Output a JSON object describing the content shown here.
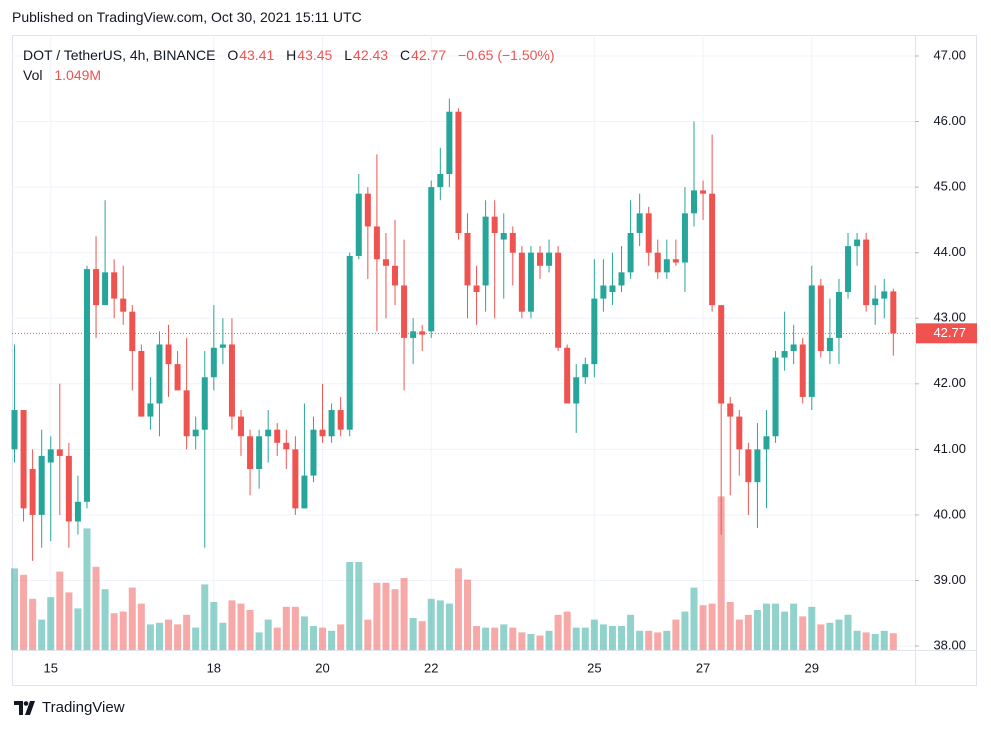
{
  "header": "Published on TradingView.com, Oct 30, 2021 15:11 UTC",
  "footer": "TradingView",
  "chart_data": {
    "type": "candlestick",
    "title": "DOT / TetherUS, 4h, BINANCE",
    "ohlc_labels": [
      "O",
      "H",
      "L",
      "C"
    ],
    "change": "−0.65 (−1.50%)",
    "volume_title": "Vol",
    "last_volume_label": "1.049M",
    "up_color": "#26a69a",
    "down_color": "#ef5350",
    "grid": true,
    "categories": [
      null,
      null,
      null,
      null,
      "15",
      null,
      null,
      null,
      null,
      null,
      null,
      null,
      null,
      null,
      null,
      null,
      null,
      null,
      null,
      null,
      null,
      null,
      "18",
      null,
      null,
      null,
      null,
      null,
      null,
      null,
      null,
      null,
      null,
      null,
      "20",
      null,
      null,
      null,
      null,
      null,
      null,
      null,
      null,
      null,
      null,
      null,
      "22",
      null,
      null,
      null,
      null,
      null,
      null,
      null,
      null,
      null,
      null,
      null,
      null,
      null,
      null,
      null,
      null,
      null,
      "25",
      null,
      null,
      null,
      null,
      null,
      null,
      null,
      null,
      null,
      null,
      null,
      "27",
      null,
      null,
      null,
      null,
      null,
      null,
      null,
      null,
      null,
      null,
      null,
      "29",
      null,
      null,
      null,
      null,
      null,
      null,
      null,
      null,
      null
    ],
    "open": [
      41.0,
      41.6,
      40.7,
      40.0,
      40.8,
      41.0,
      40.9,
      39.9,
      40.2,
      43.75,
      43.2,
      43.7,
      43.3,
      43.1,
      42.5,
      41.5,
      41.7,
      42.6,
      42.3,
      41.9,
      41.2,
      41.3,
      42.1,
      42.55,
      42.6,
      41.5,
      41.2,
      40.7,
      41.2,
      41.3,
      41.1,
      41.0,
      40.1,
      40.6,
      41.3,
      41.2,
      41.6,
      41.3,
      43.95,
      44.9,
      44.4,
      43.9,
      43.8,
      43.5,
      42.7,
      42.8,
      42.8,
      45.0,
      45.2,
      46.15,
      44.3,
      43.5,
      43.5,
      44.55,
      44.2,
      44.3,
      44.0,
      43.1,
      44.0,
      43.8,
      44.0,
      42.55,
      41.7,
      42.1,
      42.3,
      43.3,
      43.4,
      43.5,
      43.7,
      44.3,
      44.6,
      44.0,
      43.7,
      43.9,
      43.85,
      44.6,
      44.95,
      44.9,
      43.2,
      41.7,
      41.5,
      41.0,
      40.5,
      41.0,
      41.2,
      42.4,
      42.5,
      42.6,
      41.8,
      43.5,
      42.5,
      42.7,
      43.4,
      44.1,
      44.2,
      43.2,
      43.3,
      43.41
    ],
    "high": [
      42.6,
      41.6,
      41.0,
      41.3,
      41.2,
      42.0,
      41.1,
      40.6,
      43.8,
      44.25,
      44.8,
      43.9,
      43.8,
      43.2,
      42.6,
      42.1,
      42.8,
      42.9,
      42.5,
      42.7,
      41.5,
      42.5,
      43.2,
      43.0,
      43.0,
      41.6,
      41.3,
      41.3,
      41.6,
      41.4,
      41.3,
      41.2,
      41.7,
      41.5,
      42.0,
      41.7,
      41.8,
      44.0,
      45.2,
      45.0,
      45.5,
      44.3,
      44.5,
      44.2,
      43.0,
      42.9,
      45.1,
      45.6,
      46.35,
      46.2,
      44.6,
      43.8,
      44.8,
      44.8,
      44.6,
      44.4,
      44.1,
      44.1,
      44.1,
      44.2,
      44.1,
      42.6,
      42.3,
      42.4,
      43.9,
      43.9,
      44.0,
      44.1,
      44.8,
      44.9,
      44.7,
      44.2,
      44.2,
      44.2,
      45.0,
      46.0,
      45.1,
      45.8,
      43.2,
      41.8,
      41.6,
      41.1,
      41.4,
      41.6,
      42.5,
      43.1,
      42.9,
      42.7,
      43.8,
      43.6,
      43.3,
      43.6,
      44.3,
      44.3,
      44.3,
      43.5,
      43.6,
      43.45
    ],
    "low": [
      40.8,
      39.9,
      39.3,
      39.5,
      39.6,
      40.0,
      39.5,
      39.7,
      40.1,
      42.7,
      43.2,
      43.0,
      42.9,
      41.9,
      41.5,
      41.3,
      41.2,
      41.8,
      41.9,
      41.0,
      41.0,
      39.5,
      41.9,
      42.3,
      41.3,
      40.9,
      40.3,
      40.4,
      40.8,
      40.9,
      40.7,
      40.0,
      40.1,
      40.5,
      41.1,
      41.1,
      41.2,
      41.2,
      43.9,
      43.6,
      42.8,
      43.0,
      43.2,
      41.9,
      42.3,
      42.5,
      42.7,
      44.8,
      45.0,
      44.2,
      43.0,
      42.9,
      43.1,
      43.0,
      43.3,
      43.5,
      43.0,
      43.0,
      43.6,
      43.7,
      42.5,
      41.7,
      41.25,
      42.0,
      42.1,
      43.1,
      43.2,
      43.4,
      43.6,
      44.1,
      43.8,
      43.6,
      43.6,
      43.8,
      43.4,
      44.4,
      44.5,
      43.1,
      39.7,
      40.3,
      40.6,
      40.0,
      39.8,
      40.1,
      41.1,
      42.2,
      42.3,
      41.7,
      41.6,
      42.4,
      42.3,
      42.3,
      43.3,
      43.8,
      43.1,
      42.9,
      43.0,
      42.43
    ],
    "close": [
      41.6,
      40.1,
      40.0,
      40.9,
      41.0,
      40.9,
      39.9,
      40.2,
      43.75,
      43.2,
      43.7,
      43.3,
      43.1,
      42.5,
      41.5,
      41.7,
      42.6,
      42.3,
      41.9,
      41.2,
      41.3,
      42.1,
      42.55,
      42.6,
      41.5,
      41.2,
      40.7,
      41.2,
      41.3,
      41.1,
      41.0,
      40.1,
      40.6,
      41.3,
      41.2,
      41.6,
      41.3,
      43.95,
      44.9,
      44.4,
      43.9,
      43.8,
      43.5,
      42.7,
      42.8,
      42.75,
      45.0,
      45.2,
      46.15,
      44.3,
      43.5,
      43.4,
      44.55,
      44.3,
      44.3,
      44.0,
      43.1,
      44.0,
      43.8,
      44.0,
      42.55,
      41.7,
      42.1,
      42.3,
      43.3,
      43.5,
      43.5,
      43.7,
      44.3,
      44.6,
      44.0,
      43.7,
      43.9,
      43.85,
      44.6,
      44.95,
      44.9,
      43.2,
      41.7,
      41.5,
      41.0,
      40.5,
      41.0,
      41.2,
      42.4,
      42.5,
      42.6,
      41.8,
      43.5,
      42.5,
      42.7,
      43.4,
      44.1,
      44.2,
      43.2,
      43.3,
      43.41,
      42.77
    ],
    "volume": [
      5.1,
      4.7,
      3.2,
      1.9,
      3.3,
      4.9,
      3.6,
      2.6,
      7.6,
      5.2,
      3.8,
      2.3,
      2.4,
      3.9,
      2.9,
      1.6,
      1.7,
      1.9,
      1.6,
      2.2,
      1.4,
      4.1,
      3.0,
      1.7,
      3.1,
      2.9,
      2.5,
      1.1,
      1.9,
      1.4,
      2.7,
      2.7,
      2.1,
      1.5,
      1.4,
      1.2,
      1.6,
      5.5,
      5.5,
      1.9,
      4.2,
      4.2,
      3.8,
      4.5,
      2.0,
      1.8,
      3.2,
      3.1,
      2.9,
      5.1,
      4.4,
      1.5,
      1.4,
      1.4,
      1.6,
      1.4,
      1.1,
      1.0,
      0.9,
      1.2,
      2.2,
      2.4,
      1.4,
      1.4,
      1.9,
      1.6,
      1.5,
      1.5,
      2.2,
      1.2,
      1.2,
      1.1,
      1.2,
      1.9,
      2.4,
      3.9,
      2.8,
      2.9,
      9.6,
      3.0,
      1.9,
      2.2,
      2.5,
      2.9,
      2.9,
      2.4,
      2.9,
      2.1,
      2.7,
      1.6,
      1.7,
      1.9,
      2.2,
      1.2,
      1.1,
      1.0,
      1.2,
      1.049
    ],
    "ylim": [
      37.94,
      47.32
    ],
    "yticks": [
      {
        "value": 38,
        "label": "38.00"
      },
      {
        "value": 39,
        "label": "39.00"
      },
      {
        "value": 40,
        "label": "40.00"
      },
      {
        "value": 41,
        "label": "41.00"
      },
      {
        "value": 42,
        "label": "42.00"
      },
      {
        "value": 43,
        "label": "43.00"
      },
      {
        "value": 44,
        "label": "44.00"
      },
      {
        "value": 45,
        "label": "45.00"
      },
      {
        "value": 46,
        "label": "46.00"
      },
      {
        "value": 47,
        "label": "47.00"
      }
    ]
  }
}
